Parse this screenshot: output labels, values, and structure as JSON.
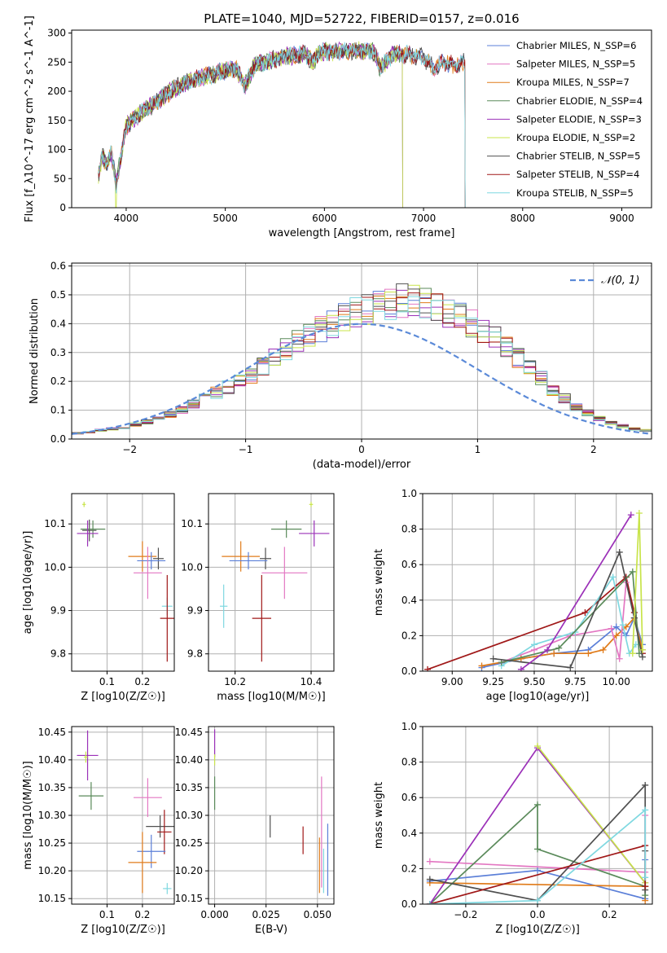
{
  "title": "PLATE=1040, MJD=52722, FIBERID=0157, z=0.016",
  "colors": {
    "blue": "#5b7fd8",
    "salpeter_miles": "#e377c2",
    "orange": "#e07b1a",
    "green": "#5a8a5a",
    "purple": "#9b30b8",
    "yellow": "#c8e44a",
    "dark": "#505050",
    "red": "#a01818",
    "cyan": "#7fd8e0"
  },
  "chart_data": [
    {
      "type": "line",
      "id": "spectrum",
      "xlabel": "wavelength [Angstrom, rest frame]",
      "ylabel": "Flux [f_λ10^-17 erg cm^-2 s^-1 A^-1]",
      "xlim": [
        3450,
        9300
      ],
      "ylim": [
        0,
        305
      ],
      "xticks": [
        4000,
        5000,
        6000,
        7000,
        8000,
        9000
      ],
      "yticks": [
        0,
        50,
        100,
        150,
        200,
        250,
        300
      ],
      "grid": false,
      "legend_position": "top-right",
      "spectrum_knots": {
        "x": [
          3720,
          3760,
          3800,
          3850,
          3900,
          3950,
          4000,
          4100,
          4200,
          4300,
          4400,
          4500,
          4600,
          4700,
          4800,
          4900,
          5000,
          5100,
          5200,
          5300,
          5400,
          5500,
          5600,
          5700,
          5800,
          5890,
          5950,
          6100,
          6300,
          6500,
          6560,
          6700,
          6900,
          7000,
          7100,
          7200,
          7300,
          7420
        ],
        "y": [
          55,
          90,
          75,
          95,
          40,
          90,
          140,
          155,
          170,
          180,
          195,
          205,
          215,
          220,
          225,
          230,
          235,
          240,
          210,
          245,
          250,
          255,
          260,
          262,
          265,
          250,
          268,
          268,
          270,
          268,
          240,
          265,
          262,
          258,
          240,
          250,
          245,
          250
        ]
      },
      "series": [
        {
          "name": "Chabrier MILES, N_SSP=6",
          "color": "#5b7fd8",
          "x_end": 7420
        },
        {
          "name": "Salpeter MILES, N_SSP=5",
          "color": "#e377c2",
          "x_end": 7420
        },
        {
          "name": "Kroupa MILES, N_SSP=7",
          "color": "#e07b1a",
          "x_end": 7420
        },
        {
          "name": "Chabrier ELODIE, N_SSP=4",
          "color": "#5a8a5a",
          "x_end": 6790
        },
        {
          "name": "Salpeter ELODIE, N_SSP=3",
          "color": "#9b30b8",
          "x_end": 6790
        },
        {
          "name": "Kroupa ELODIE, N_SSP=2",
          "color": "#c8e44a",
          "x_end": 6790
        },
        {
          "name": "Chabrier STELIB, N_SSP=5",
          "color": "#505050",
          "x_end": 7420
        },
        {
          "name": "Salpeter STELIB, N_SSP=4",
          "color": "#a01818",
          "x_end": 7420
        },
        {
          "name": "Kroupa STELIB, N_SSP=5",
          "color": "#7fd8e0",
          "x_end": 7420
        }
      ]
    },
    {
      "type": "histogram",
      "id": "residuals",
      "xlabel": "(data-model)/error",
      "ylabel": "Normed distribution",
      "xlim": [
        -2.5,
        2.5
      ],
      "ylim": [
        0,
        0.61
      ],
      "xticks": [
        -2,
        -1,
        0,
        1,
        2
      ],
      "yticks": [
        0.0,
        0.1,
        0.2,
        0.3,
        0.4,
        0.5,
        0.6
      ],
      "grid": true,
      "legend": "𝒩(0, 1)",
      "legend_position": "top-right",
      "bin_width": 0.1,
      "hist_shape": [
        0.02,
        0.025,
        0.03,
        0.035,
        0.04,
        0.05,
        0.06,
        0.07,
        0.085,
        0.1,
        0.12,
        0.14,
        0.16,
        0.18,
        0.2,
        0.22,
        0.25,
        0.28,
        0.31,
        0.34,
        0.36,
        0.38,
        0.4,
        0.42,
        0.44,
        0.45,
        0.46,
        0.47,
        0.48,
        0.475,
        0.47,
        0.46,
        0.44,
        0.42,
        0.4,
        0.38,
        0.35,
        0.32,
        0.28,
        0.25,
        0.21,
        0.17,
        0.14,
        0.11,
        0.09,
        0.07,
        0.055,
        0.045,
        0.035,
        0.03
      ]
    },
    {
      "type": "scatter",
      "id": "age-vs-Z",
      "xlabel": "Z [log10(Z/Z☉)]",
      "ylabel": "age  [log10(age/yr)]",
      "xlim": [
        0.0,
        0.29
      ],
      "ylim": [
        9.76,
        10.17
      ],
      "xticks": [
        0.1,
        0.2
      ],
      "yticks": [
        9.8,
        9.9,
        10.0,
        10.1
      ],
      "grid": true,
      "points": [
        {
          "color": "#c8e44a",
          "x": 0.035,
          "y": 10.145,
          "xerr": 0.005,
          "yerr": 0.006
        },
        {
          "color": "#505050",
          "x": 0.05,
          "y": 10.085,
          "xerr": 0.02,
          "yerr": 0.025
        },
        {
          "color": "#5a8a5a",
          "x": 0.06,
          "y": 10.088,
          "xerr": 0.035,
          "yerr": 0.02
        },
        {
          "color": "#9b30b8",
          "x": 0.045,
          "y": 10.078,
          "xerr": 0.03,
          "yerr": 0.03
        },
        {
          "color": "#e07b1a",
          "x": 0.2,
          "y": 10.025,
          "xerr": 0.04,
          "yerr": 0.035
        },
        {
          "color": "#505050",
          "x": 0.245,
          "y": 10.02,
          "xerr": 0.015,
          "yerr": 0.025
        },
        {
          "color": "#5b7fd8",
          "x": 0.225,
          "y": 10.015,
          "xerr": 0.04,
          "yerr": 0.02
        },
        {
          "color": "#e377c2",
          "x": 0.215,
          "y": 9.987,
          "xerr": 0.04,
          "yerr": 0.06
        },
        {
          "color": "#7fd8e0",
          "x": 0.27,
          "y": 9.91,
          "xerr": 0.015,
          "yerr": 0.02
        },
        {
          "color": "#a01818",
          "x": 0.27,
          "y": 9.882,
          "xerr": 0.02,
          "yerr": 0.1
        }
      ]
    },
    {
      "type": "scatter",
      "id": "age-vs-mass",
      "xlabel": "mass [log10(M/M☉)]",
      "ylabel": "",
      "xlim": [
        10.13,
        10.46
      ],
      "ylim": [
        9.76,
        10.17
      ],
      "xticks": [
        10.2,
        10.4
      ],
      "yticks": [
        9.8,
        9.9,
        10.0,
        10.1
      ],
      "grid": true,
      "points": [
        {
          "color": "#c8e44a",
          "x": 10.4,
          "y": 10.145,
          "xerr": 0.005,
          "yerr": 0.006
        },
        {
          "color": "#5a8a5a",
          "x": 10.335,
          "y": 10.088,
          "xerr": 0.04,
          "yerr": 0.02
        },
        {
          "color": "#9b30b8",
          "x": 10.408,
          "y": 10.078,
          "xerr": 0.04,
          "yerr": 0.03
        },
        {
          "color": "#e07b1a",
          "x": 10.215,
          "y": 10.025,
          "xerr": 0.05,
          "yerr": 0.035
        },
        {
          "color": "#505050",
          "x": 10.28,
          "y": 10.02,
          "xerr": 0.015,
          "yerr": 0.025
        },
        {
          "color": "#5b7fd8",
          "x": 10.235,
          "y": 10.015,
          "xerr": 0.05,
          "yerr": 0.02
        },
        {
          "color": "#e377c2",
          "x": 10.33,
          "y": 9.987,
          "xerr": 0.06,
          "yerr": 0.06
        },
        {
          "color": "#7fd8e0",
          "x": 10.17,
          "y": 9.91,
          "xerr": 0.01,
          "yerr": 0.05
        },
        {
          "color": "#a01818",
          "x": 10.27,
          "y": 9.882,
          "xerr": 0.025,
          "yerr": 0.1
        }
      ]
    },
    {
      "type": "line",
      "id": "massweight-vs-age",
      "xlabel": "age  [log10(age/yr)]",
      "ylabel": "mass weight",
      "xlim": [
        8.82,
        10.22
      ],
      "ylim": [
        0.0,
        1.0
      ],
      "xticks": [
        9.0,
        9.25,
        9.5,
        9.75,
        10.0
      ],
      "yticks": [
        0.0,
        0.2,
        0.4,
        0.6,
        0.8,
        1.0
      ],
      "grid": true,
      "series": [
        {
          "color": "#a01818",
          "x": [
            8.85,
            9.81,
            10.06,
            10.11,
            10.16
          ],
          "y": [
            0.01,
            0.33,
            0.53,
            0.33,
            0.1
          ]
        },
        {
          "color": "#5b7fd8",
          "x": [
            9.18,
            9.42,
            9.62,
            9.83,
            10.0,
            10.06,
            10.11,
            10.16
          ],
          "y": [
            0.02,
            0.07,
            0.1,
            0.12,
            0.25,
            0.2,
            0.3,
            0.15
          ]
        },
        {
          "color": "#e07b1a",
          "x": [
            9.18,
            9.42,
            9.62,
            9.83,
            9.92,
            10.0,
            10.06,
            10.11,
            10.16
          ],
          "y": [
            0.03,
            0.07,
            0.1,
            0.1,
            0.12,
            0.2,
            0.25,
            0.3,
            0.12
          ]
        },
        {
          "color": "#e377c2",
          "x": [
            9.3,
            9.5,
            9.72,
            9.97,
            10.02,
            10.06
          ],
          "y": [
            0.05,
            0.12,
            0.2,
            0.24,
            0.07,
            0.5
          ]
        },
        {
          "color": "#7fd8e0",
          "x": [
            9.3,
            9.5,
            9.75,
            9.98,
            10.04,
            10.08,
            10.12
          ],
          "y": [
            0.03,
            0.15,
            0.22,
            0.53,
            0.26,
            0.1,
            0.15
          ]
        },
        {
          "color": "#5a8a5a",
          "x": [
            9.3,
            9.65,
            10.1,
            10.14
          ],
          "y": [
            0.05,
            0.13,
            0.56,
            0.1
          ]
        },
        {
          "color": "#505050",
          "x": [
            9.25,
            9.72,
            10.02,
            10.11,
            10.16
          ],
          "y": [
            0.07,
            0.02,
            0.67,
            0.3,
            0.08
          ]
        },
        {
          "color": "#9b30b8",
          "x": [
            9.42,
            9.58,
            10.09
          ],
          "y": [
            0.01,
            0.12,
            0.88
          ]
        },
        {
          "color": "#c8e44a",
          "x": [
            10.1,
            10.14,
            10.16
          ],
          "y": [
            0.1,
            0.89,
            0.12
          ]
        }
      ]
    },
    {
      "type": "scatter",
      "id": "mass-vs-Z",
      "xlabel": "Z [log10(Z/Z☉)]",
      "ylabel": "mass [log10(M/M☉)]",
      "xlim": [
        0.0,
        0.29
      ],
      "ylim": [
        10.14,
        10.46
      ],
      "xticks": [
        0.1,
        0.2
      ],
      "yticks": [
        10.15,
        10.2,
        10.25,
        10.3,
        10.35,
        10.4,
        10.45
      ],
      "grid": true,
      "points": [
        {
          "color": "#9b30b8",
          "x": 0.045,
          "y": 10.408,
          "xerr": 0.03,
          "yerr": 0.045
        },
        {
          "color": "#c8e44a",
          "x": 0.04,
          "y": 10.405,
          "xerr": 0.005,
          "yerr": 0.01
        },
        {
          "color": "#5a8a5a",
          "x": 0.055,
          "y": 10.335,
          "xerr": 0.035,
          "yerr": 0.025
        },
        {
          "color": "#e377c2",
          "x": 0.215,
          "y": 10.332,
          "xerr": 0.04,
          "yerr": 0.035
        },
        {
          "color": "#505050",
          "x": 0.25,
          "y": 10.28,
          "xerr": 0.04,
          "yerr": 0.02
        },
        {
          "color": "#a01818",
          "x": 0.262,
          "y": 10.27,
          "xerr": 0.02,
          "yerr": 0.04
        },
        {
          "color": "#5b7fd8",
          "x": 0.225,
          "y": 10.235,
          "xerr": 0.04,
          "yerr": 0.03
        },
        {
          "color": "#e07b1a",
          "x": 0.2,
          "y": 10.215,
          "xerr": 0.04,
          "yerr": 0.055
        },
        {
          "color": "#7fd8e0",
          "x": 0.27,
          "y": 10.168,
          "xerr": 0.012,
          "yerr": 0.01
        }
      ]
    },
    {
      "type": "scatter",
      "id": "mass-vs-ebv",
      "xlabel": "E(B-V)",
      "ylabel": "",
      "xlim": [
        -0.003,
        0.058
      ],
      "ylim": [
        10.14,
        10.46
      ],
      "xticks": [
        0.0,
        0.025,
        0.05
      ],
      "yticks": [
        10.15,
        10.2,
        10.25,
        10.3,
        10.35,
        10.4,
        10.45
      ],
      "grid": true,
      "points": [
        {
          "color": "#9b30b8",
          "x": 0.0,
          "y": 10.43,
          "xerr": 0.0,
          "yerr": 0.025
        },
        {
          "color": "#c8e44a",
          "x": 0.0,
          "y": 10.4,
          "xerr": 0.0,
          "yerr": 0.01
        },
        {
          "color": "#5a8a5a",
          "x": 0.0,
          "y": 10.34,
          "xerr": 0.0,
          "yerr": 0.03
        },
        {
          "color": "#505050",
          "x": 0.027,
          "y": 10.28,
          "xerr": 0.0,
          "yerr": 0.02
        },
        {
          "color": "#a01818",
          "x": 0.043,
          "y": 10.255,
          "xerr": 0.0,
          "yerr": 0.025
        },
        {
          "color": "#e377c2",
          "x": 0.052,
          "y": 10.27,
          "xerr": 0.0,
          "yerr": 0.1
        },
        {
          "color": "#e07b1a",
          "x": 0.051,
          "y": 10.21,
          "xerr": 0.0,
          "yerr": 0.05
        },
        {
          "color": "#7fd8e0",
          "x": 0.053,
          "y": 10.2,
          "xerr": 0.0,
          "yerr": 0.04
        },
        {
          "color": "#5b7fd8",
          "x": 0.055,
          "y": 10.22,
          "xerr": 0.0,
          "yerr": 0.065
        }
      ]
    },
    {
      "type": "line",
      "id": "massweight-vs-Z",
      "xlabel": "Z [log10(Z/Z☉)]",
      "ylabel": "mass weight",
      "xlim": [
        -0.32,
        0.32
      ],
      "ylim": [
        0.0,
        1.0
      ],
      "xticks": [
        -0.2,
        0.0,
        0.2
      ],
      "yticks": [
        0.0,
        0.2,
        0.4,
        0.6,
        0.8,
        1.0
      ],
      "grid": true,
      "series": [
        {
          "color": "#5b7fd8",
          "x": [
            -0.3,
            0.0,
            0.3,
            0.3
          ],
          "y": [
            0.13,
            0.19,
            0.03,
            0.25
          ]
        },
        {
          "color": "#e377c2",
          "x": [
            -0.3,
            0.3,
            0.3
          ],
          "y": [
            0.24,
            0.18,
            0.5
          ]
        },
        {
          "color": "#e07b1a",
          "x": [
            -0.3,
            0.3,
            0.3
          ],
          "y": [
            0.12,
            0.1,
            0.02
          ]
        },
        {
          "color": "#5a8a5a",
          "x": [
            -0.3,
            0.0,
            0.0,
            0.3,
            0.3
          ],
          "y": [
            0.0,
            0.56,
            0.31,
            0.1,
            0.05
          ]
        },
        {
          "color": "#9b30b8",
          "x": [
            -0.3,
            0.0,
            0.3
          ],
          "y": [
            0.0,
            0.88,
            0.12
          ]
        },
        {
          "color": "#c8e44a",
          "x": [
            0.0,
            0.3,
            0.3
          ],
          "y": [
            0.89,
            0.12,
            0.1
          ]
        },
        {
          "color": "#505050",
          "x": [
            -0.3,
            0.0,
            0.3,
            0.3,
            0.3
          ],
          "y": [
            0.14,
            0.02,
            0.67,
            0.3,
            0.08
          ]
        },
        {
          "color": "#a01818",
          "x": [
            -0.3,
            0.3,
            0.3
          ],
          "y": [
            0.0,
            0.33,
            0.1
          ]
        },
        {
          "color": "#7fd8e0",
          "x": [
            -0.3,
            0.0,
            0.3,
            0.3
          ],
          "y": [
            0.0,
            0.02,
            0.53,
            0.15
          ]
        }
      ]
    }
  ]
}
